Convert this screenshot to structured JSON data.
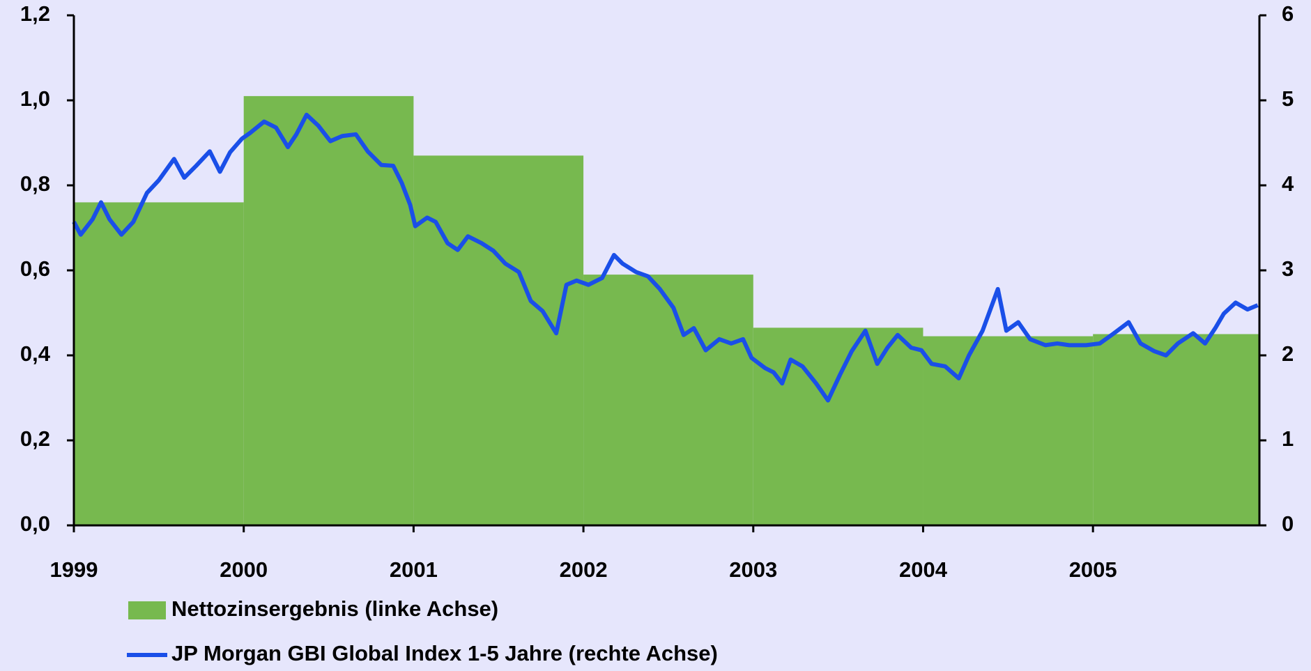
{
  "chart_data": {
    "type": "combo",
    "xlim": [
      1999,
      2005.98
    ],
    "xticks": [
      1999,
      2000,
      2001,
      2002,
      2003,
      2004,
      2005
    ],
    "ylim": [
      0,
      1.2
    ],
    "yticks": [
      {
        "value": 0,
        "label": "0,0"
      },
      {
        "value": 0.2,
        "label": "0,2"
      },
      {
        "value": 0.4,
        "label": "0,4"
      },
      {
        "value": 0.6,
        "label": "0,6"
      },
      {
        "value": 0.8,
        "label": "0,8"
      },
      {
        "value": 1.0,
        "label": "1,0"
      },
      {
        "value": 1.2,
        "label": "1,2"
      }
    ],
    "y2lim": [
      0,
      6
    ],
    "y2ticks": [
      0,
      1,
      2,
      3,
      4,
      5,
      6
    ],
    "series": [
      {
        "name": "Nettozinsergebnis (linke Achse)",
        "type": "step-area",
        "color": "#77b94f",
        "bins": [
          1999,
          2000,
          2001,
          2002,
          2003,
          2004,
          2005,
          2005.98
        ],
        "values": [
          0.76,
          1.01,
          0.87,
          0.59,
          0.465,
          0.445,
          0.45
        ]
      },
      {
        "name": "JP Morgan GBI Global Index 1-5 Jahre (rechte Achse)",
        "type": "line",
        "axis": "y2",
        "color": "#1a4fe8",
        "x": [
          1999.0,
          1999.04,
          1999.11,
          1999.16,
          1999.21,
          1999.28,
          1999.35,
          1999.43,
          1999.5,
          1999.59,
          1999.65,
          1999.72,
          1999.8,
          1999.86,
          1999.92,
          1999.99,
          2000.04,
          2000.12,
          2000.19,
          2000.26,
          2000.31,
          2000.37,
          2000.44,
          2000.51,
          2000.58,
          2000.66,
          2000.73,
          2000.81,
          2000.88,
          2000.93,
          2000.98,
          2001.01,
          2001.08,
          2001.13,
          2001.2,
          2001.26,
          2001.32,
          2001.4,
          2001.47,
          2001.54,
          2001.62,
          2001.69,
          2001.76,
          2001.84,
          2001.9,
          2001.96,
          2002.03,
          2002.11,
          2002.18,
          2002.23,
          2002.31,
          2002.38,
          2002.45,
          2002.53,
          2002.59,
          2002.65,
          2002.72,
          2002.8,
          2002.87,
          2002.94,
          2002.99,
          2003.07,
          2003.12,
          2003.17,
          2003.22,
          2003.29,
          2003.37,
          2003.44,
          2003.51,
          2003.58,
          2003.66,
          2003.73,
          2003.79,
          2003.85,
          2003.93,
          2003.99,
          2004.05,
          2004.13,
          2004.21,
          2004.27,
          2004.35,
          2004.44,
          2004.49,
          2004.56,
          2004.63,
          2004.72,
          2004.79,
          2004.86,
          2004.96,
          2005.04,
          2005.11,
          2005.21,
          2005.28,
          2005.36,
          2005.43,
          2005.5,
          2005.59,
          2005.66,
          2005.72,
          2005.77,
          2005.84,
          2005.91,
          2005.97
        ],
        "values": [
          3.57,
          3.42,
          3.6,
          3.8,
          3.6,
          3.42,
          3.57,
          3.91,
          4.06,
          4.31,
          4.09,
          4.23,
          4.4,
          4.16,
          4.39,
          4.55,
          4.62,
          4.75,
          4.68,
          4.45,
          4.6,
          4.83,
          4.7,
          4.52,
          4.58,
          4.6,
          4.4,
          4.24,
          4.23,
          4.03,
          3.77,
          3.52,
          3.62,
          3.57,
          3.32,
          3.24,
          3.4,
          3.32,
          3.23,
          3.08,
          2.98,
          2.64,
          2.52,
          2.26,
          2.83,
          2.88,
          2.83,
          2.91,
          3.18,
          3.08,
          2.98,
          2.93,
          2.78,
          2.56,
          2.24,
          2.32,
          2.06,
          2.19,
          2.14,
          2.19,
          1.97,
          1.85,
          1.8,
          1.67,
          1.95,
          1.87,
          1.67,
          1.47,
          1.77,
          2.05,
          2.29,
          1.9,
          2.09,
          2.24,
          2.09,
          2.06,
          1.9,
          1.87,
          1.73,
          2.0,
          2.29,
          2.78,
          2.29,
          2.39,
          2.19,
          2.12,
          2.14,
          2.12,
          2.12,
          2.14,
          2.24,
          2.39,
          2.14,
          2.05,
          2.0,
          2.14,
          2.26,
          2.14,
          2.32,
          2.49,
          2.62,
          2.54,
          2.59
        ]
      }
    ]
  }
}
